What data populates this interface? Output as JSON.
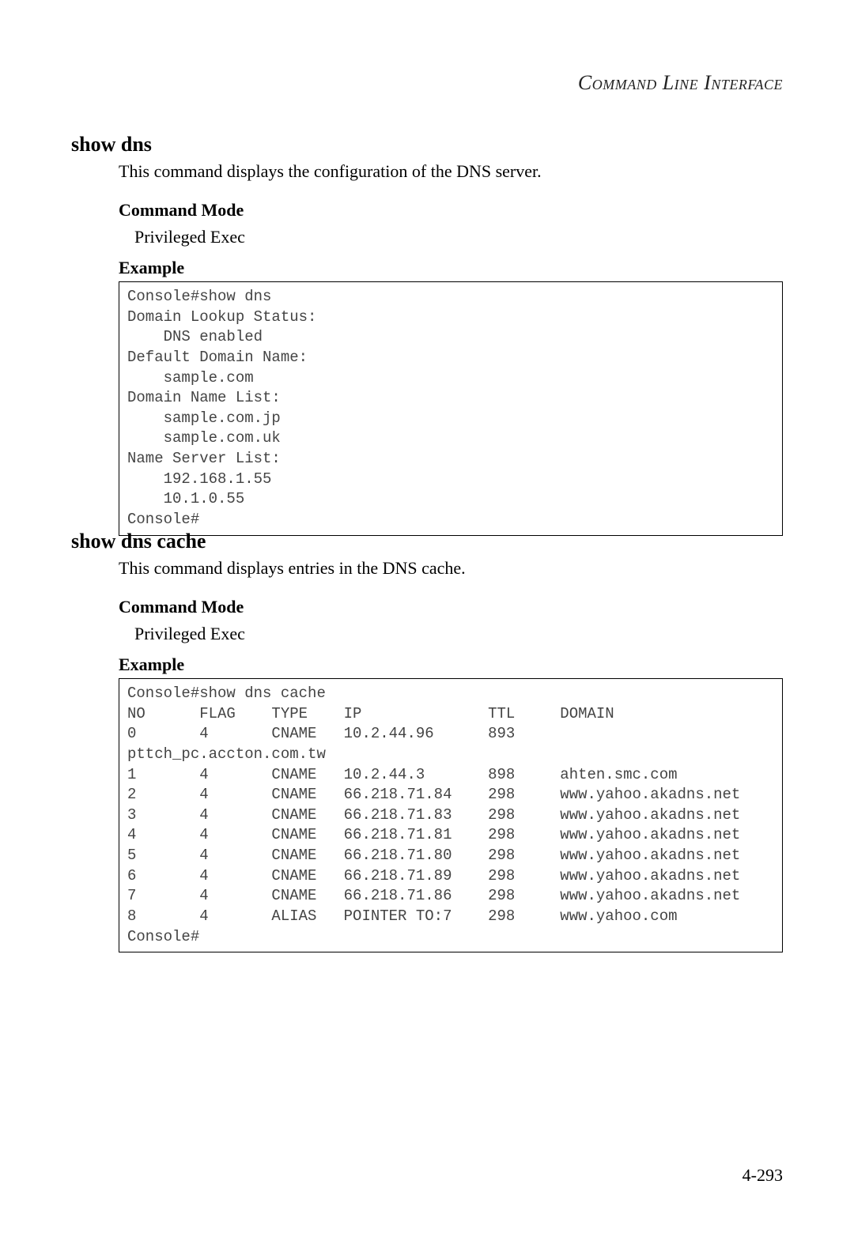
{
  "header": "Command Line Interface",
  "page_number": "4-293",
  "sections": [
    {
      "title": "show dns",
      "description": "This command displays the configuration of the DNS server.",
      "command_mode_heading": "Command Mode",
      "command_mode_value": "Privileged Exec",
      "example_heading": "Example",
      "code": "Console#show dns\nDomain Lookup Status:\n    DNS enabled\nDefault Domain Name:\n    sample.com\nDomain Name List:\n    sample.com.jp\n    sample.com.uk\nName Server List:\n    192.168.1.55\n    10.1.0.55\nConsole#"
    },
    {
      "title": "show dns cache",
      "description": "This command displays entries in the DNS cache.",
      "command_mode_heading": "Command Mode",
      "command_mode_value": "Privileged Exec",
      "example_heading": "Example",
      "code": "Console#show dns cache\nNO      FLAG    TYPE    IP              TTL     DOMAIN\n0       4       CNAME   10.2.44.96      893     \npttch_pc.accton.com.tw\n1       4       CNAME   10.2.44.3       898     ahten.smc.com\n2       4       CNAME   66.218.71.84    298     www.yahoo.akadns.net\n3       4       CNAME   66.218.71.83    298     www.yahoo.akadns.net\n4       4       CNAME   66.218.71.81    298     www.yahoo.akadns.net\n5       4       CNAME   66.218.71.80    298     www.yahoo.akadns.net\n6       4       CNAME   66.218.71.89    298     www.yahoo.akadns.net\n7       4       CNAME   66.218.71.86    298     www.yahoo.akadns.net\n8       4       ALIAS   POINTER TO:7    298     www.yahoo.com\nConsole#"
    }
  ]
}
